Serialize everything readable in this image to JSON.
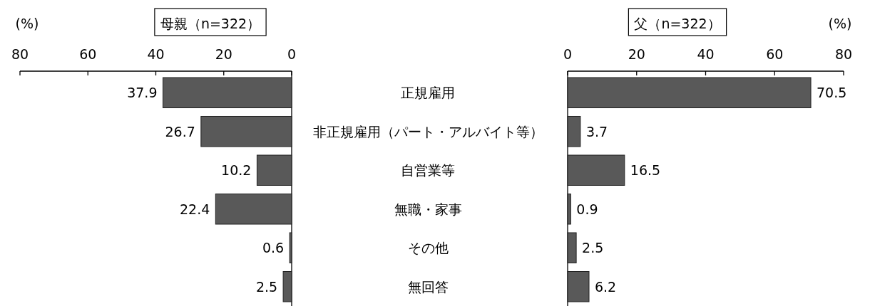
{
  "chart_data": [
    {
      "type": "bar",
      "orientation": "horizontal",
      "title": "母親（n=322）",
      "xlabel": "(%)",
      "categories": [
        "正規雇用",
        "非正規雇用（パート・アルバイト等）",
        "自営業等",
        "無職・家事",
        "その他",
        "無回答"
      ],
      "values": [
        37.9,
        26.7,
        10.2,
        22.4,
        0.6,
        2.5
      ],
      "color": "#595959",
      "xlim": [
        80,
        0
      ],
      "xticks": [
        80,
        60,
        40,
        20,
        0
      ],
      "data_labels": true
    },
    {
      "type": "bar",
      "orientation": "horizontal",
      "title": "父（n=322）",
      "xlabel": "(%)",
      "categories": [
        null,
        null,
        null,
        null,
        null,
        null
      ],
      "values": [
        70.5,
        3.7,
        16.5,
        0.9,
        2.5,
        6.2
      ],
      "color": "#595959",
      "xlim": [
        0,
        80
      ],
      "xticks": [
        0,
        20,
        40,
        60,
        80
      ],
      "data_labels": true,
      "tick_labels": "x"
    }
  ]
}
